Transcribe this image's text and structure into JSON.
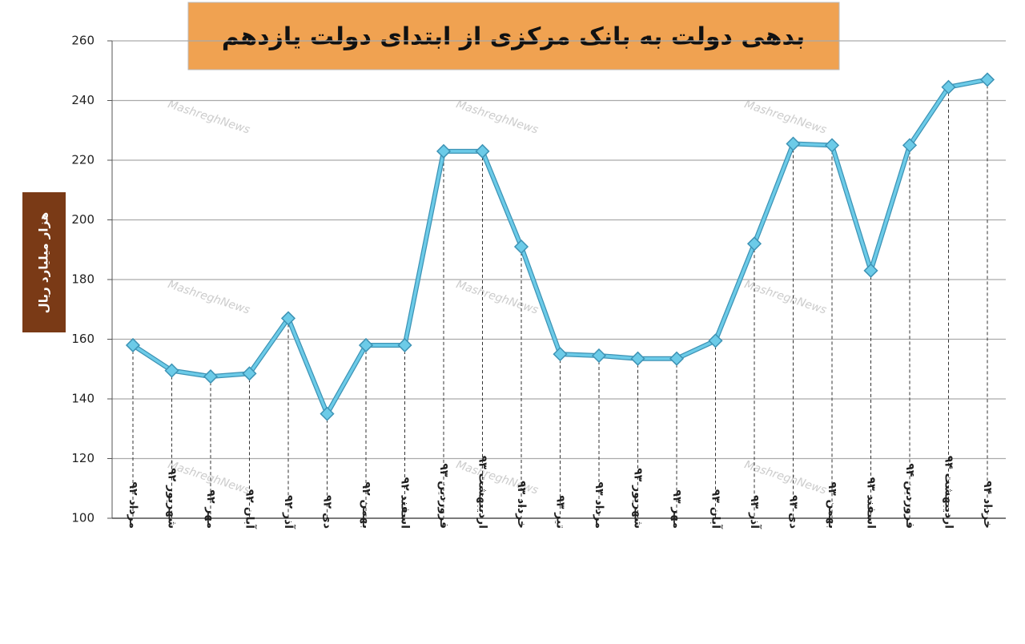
{
  "chart_data": {
    "type": "line",
    "title": "بدهی دولت به بانک مرکزی از ابتدای دولت یازدهم",
    "y_label": "هزار میلیارد ریال",
    "watermark": "MashreghNews",
    "categories": [
      "مرداد ۹۲",
      "شهریور ۹۲",
      "مهر ۹۲",
      "آبان ۹۲",
      "آذر ۹۲",
      "دی ۹۲",
      "بهمن ۹۲",
      "اسفند ۹۲",
      "فروردین ۹۳",
      "اردیبهشت ۹۳",
      "خرداد ۹۳",
      "تیر ۹۳",
      "مرداد ۹۳",
      "شهریور ۹۳",
      "مهر ۹۳",
      "آبان ۹۳",
      "آذر ۹۳",
      "دی ۹۳",
      "بهمن ۹۳",
      "اسفند ۹۳",
      "فروردین ۹۴",
      "اردیبهشت ۹۴",
      "خرداد ۹۴"
    ],
    "values": [
      158,
      149.5,
      147.5,
      148.5,
      167,
      135,
      158,
      158,
      223,
      223,
      191,
      155,
      154.5,
      153.5,
      153.5,
      159.5,
      192,
      225.5,
      225,
      183,
      225,
      244.5,
      247
    ],
    "color": "#6ccbe8",
    "ylim": [
      100,
      260
    ],
    "yticks": [
      100,
      120,
      140,
      160,
      180,
      200,
      220,
      240,
      260
    ],
    "grid": true
  }
}
